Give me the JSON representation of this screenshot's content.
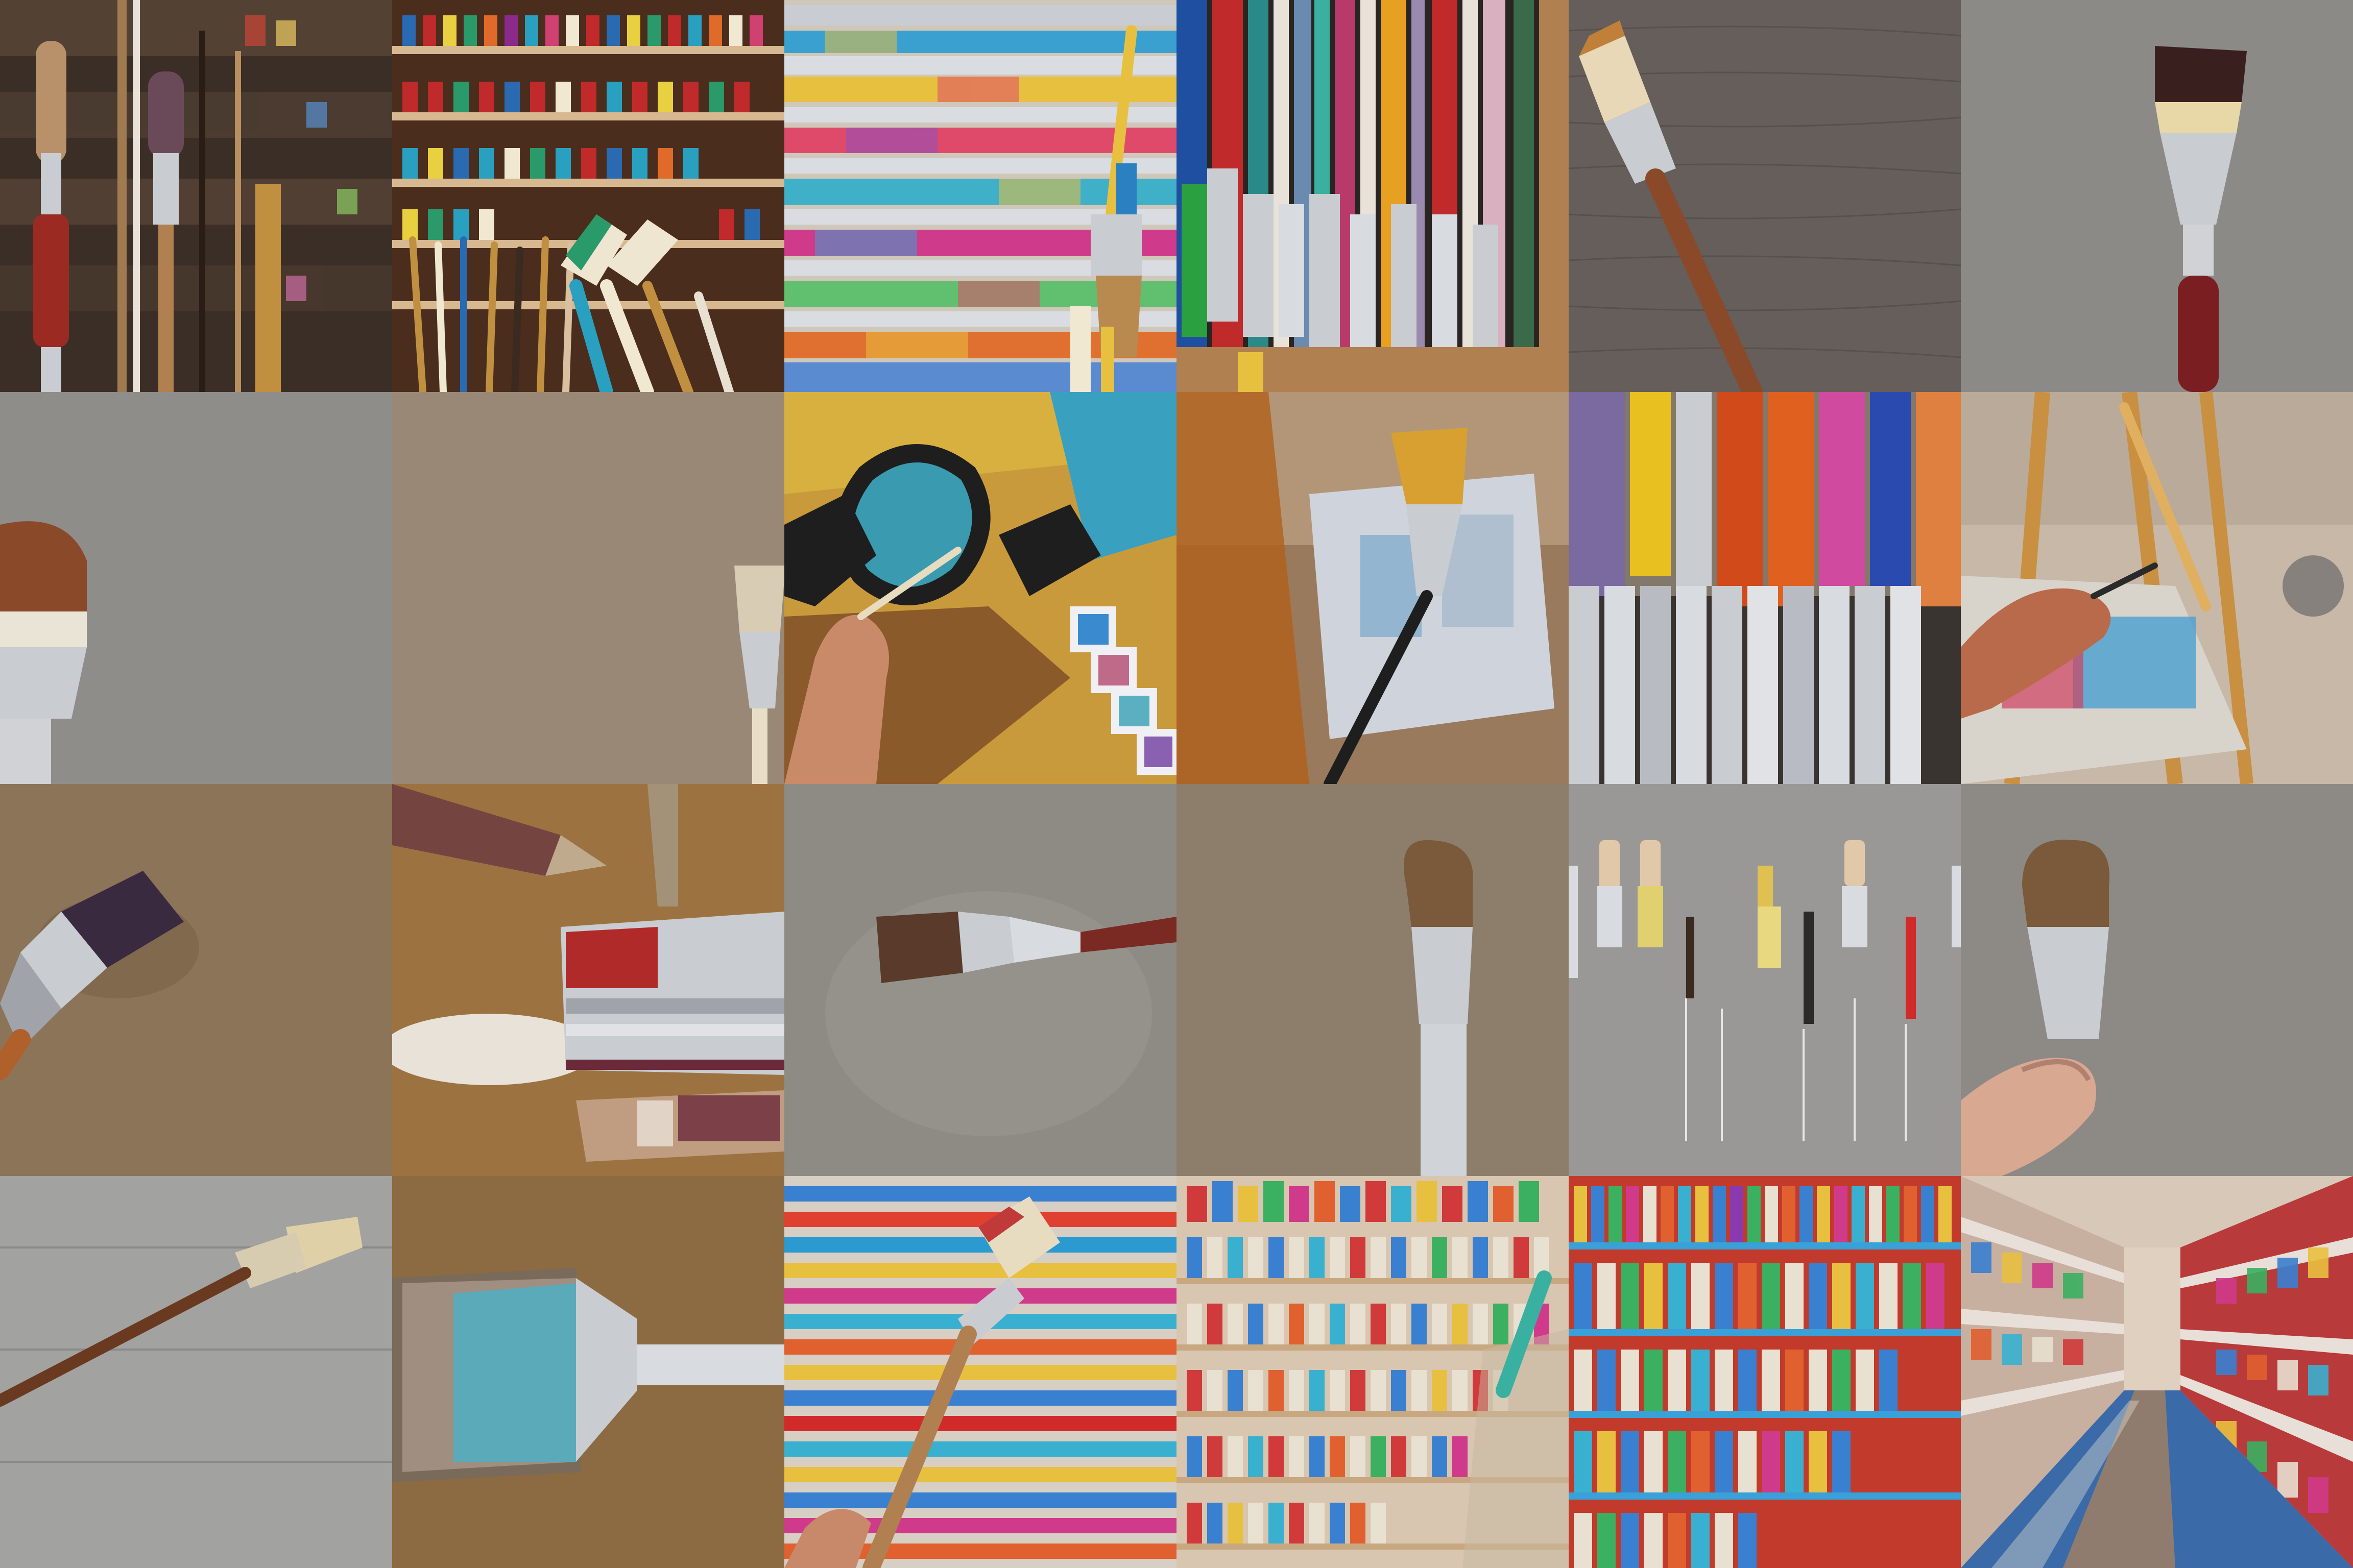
{
  "grid": {
    "rows": 4,
    "columns": 6
  },
  "tiles": [
    {
      "subject": "paintbrushes-before-shelves",
      "bg": "#4a3a30"
    },
    {
      "subject": "brushes-in-front-of-paint-shelves",
      "bg": "#5b3a24"
    },
    {
      "subject": "brush-against-rainbow-shelves",
      "bg": "#c9c2b5"
    },
    {
      "subject": "colorful-brush-handles-closeup",
      "bg": "#2a2a2a"
    },
    {
      "subject": "flat-brush-on-wood",
      "bg": "#6b645e"
    },
    {
      "subject": "flat-brush-gray-backdrop",
      "bg": "#8c8a87"
    },
    {
      "subject": "brush-head-at-left-edge",
      "bg": "#8f8d8a"
    },
    {
      "subject": "small-brush-at-right-edge",
      "bg": "#9a8877"
    },
    {
      "subject": "hand-painting-abstract",
      "bg": "#c99a3c"
    },
    {
      "subject": "brush-before-canvas-blurred",
      "bg": "#a58a6e"
    },
    {
      "subject": "row-of-painted-brushes",
      "bg": "#5c7a9a"
    },
    {
      "subject": "hand-with-brush-blurred",
      "bg": "#c8b8a8"
    },
    {
      "subject": "brush-on-brown-backdrop",
      "bg": "#8c7459"
    },
    {
      "subject": "brushes-flying-brown-backdrop",
      "bg": "#9c7340"
    },
    {
      "subject": "brush-horizontal-gray",
      "bg": "#8e8b85"
    },
    {
      "subject": "brush-vertical-taupe",
      "bg": "#8d7e6c"
    },
    {
      "subject": "brushes-hanging-gray-wall",
      "bg": "#9a9896"
    },
    {
      "subject": "hand-holding-brush",
      "bg": "#8d8a86"
    },
    {
      "subject": "brush-on-gray-planks",
      "bg": "#9c9c9a"
    },
    {
      "subject": "wide-brush-tan-backdrop",
      "bg": "#8c6a42"
    },
    {
      "subject": "brush-over-striped-paint",
      "bg": "#d0b8a0"
    },
    {
      "subject": "paint-store-shelves",
      "bg": "#d8c6b0"
    },
    {
      "subject": "red-shelves-paint-tubes",
      "bg": "#c23a2c"
    },
    {
      "subject": "art-store-aisle",
      "bg": "#b83a3a"
    }
  ]
}
